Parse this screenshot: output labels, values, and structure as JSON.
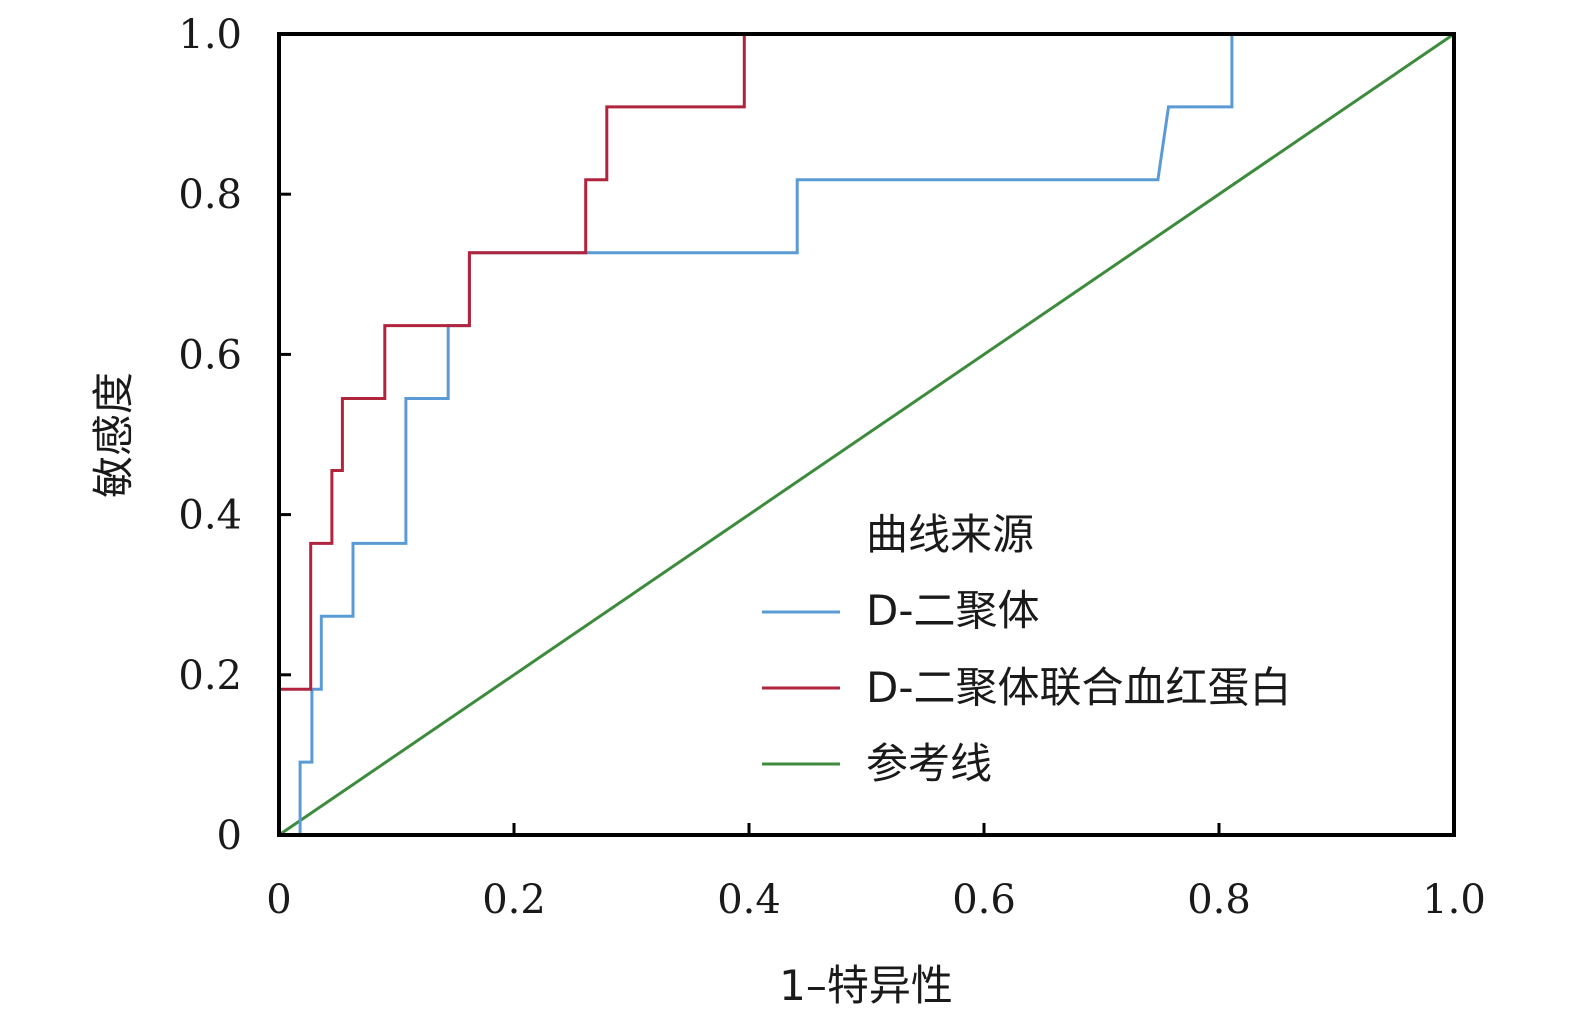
{
  "chart_data": {
    "type": "line",
    "title": "",
    "xlabel": "1–特异性",
    "ylabel": "敏感度",
    "xlim": [
      0,
      1
    ],
    "ylim": [
      0,
      1
    ],
    "grid": false,
    "legend_position": "bottom-right",
    "legend_title": "曲线来源",
    "x_ticks": [
      0,
      0.2,
      0.4,
      0.6,
      0.8,
      1.0
    ],
    "x_tick_labels": [
      "0",
      "0.2",
      "0.4",
      "0.6",
      "0.8",
      "1.0"
    ],
    "y_ticks": [
      0,
      0.2,
      0.4,
      0.6,
      0.8,
      1.0
    ],
    "y_tick_labels": [
      "0",
      "0.2",
      "0.4",
      "0.6",
      "0.8",
      "1.0"
    ],
    "series": [
      {
        "name": "D-二聚体",
        "color": "#5b9bd5",
        "points": [
          [
            0,
            0
          ],
          [
            0.018,
            0
          ],
          [
            0.018,
            0.091
          ],
          [
            0.028,
            0.091
          ],
          [
            0.028,
            0.182
          ],
          [
            0.036,
            0.182
          ],
          [
            0.036,
            0.273
          ],
          [
            0.063,
            0.273
          ],
          [
            0.063,
            0.364
          ],
          [
            0.108,
            0.364
          ],
          [
            0.108,
            0.545
          ],
          [
            0.144,
            0.545
          ],
          [
            0.144,
            0.636
          ],
          [
            0.162,
            0.636
          ],
          [
            0.162,
            0.727
          ],
          [
            0.441,
            0.727
          ],
          [
            0.441,
            0.818
          ],
          [
            0.748,
            0.818
          ],
          [
            0.757,
            0.909
          ],
          [
            0.811,
            0.909
          ],
          [
            0.811,
            1.0
          ],
          [
            1.0,
            1.0
          ]
        ]
      },
      {
        "name": "D-二聚体联合血红蛋白",
        "color": "#b0243e",
        "points": [
          [
            0,
            0
          ],
          [
            0,
            0.182
          ],
          [
            0.027,
            0.182
          ],
          [
            0.027,
            0.364
          ],
          [
            0.045,
            0.364
          ],
          [
            0.045,
            0.455
          ],
          [
            0.054,
            0.455
          ],
          [
            0.054,
            0.545
          ],
          [
            0.09,
            0.545
          ],
          [
            0.09,
            0.636
          ],
          [
            0.162,
            0.636
          ],
          [
            0.162,
            0.727
          ],
          [
            0.261,
            0.727
          ],
          [
            0.261,
            0.818
          ],
          [
            0.279,
            0.818
          ],
          [
            0.279,
            0.909
          ],
          [
            0.396,
            0.909
          ],
          [
            0.396,
            1.0
          ],
          [
            1.0,
            1.0
          ]
        ]
      },
      {
        "name": "参考线",
        "color": "#3d8b3d",
        "points": [
          [
            0,
            0
          ],
          [
            1,
            1
          ]
        ]
      }
    ]
  }
}
